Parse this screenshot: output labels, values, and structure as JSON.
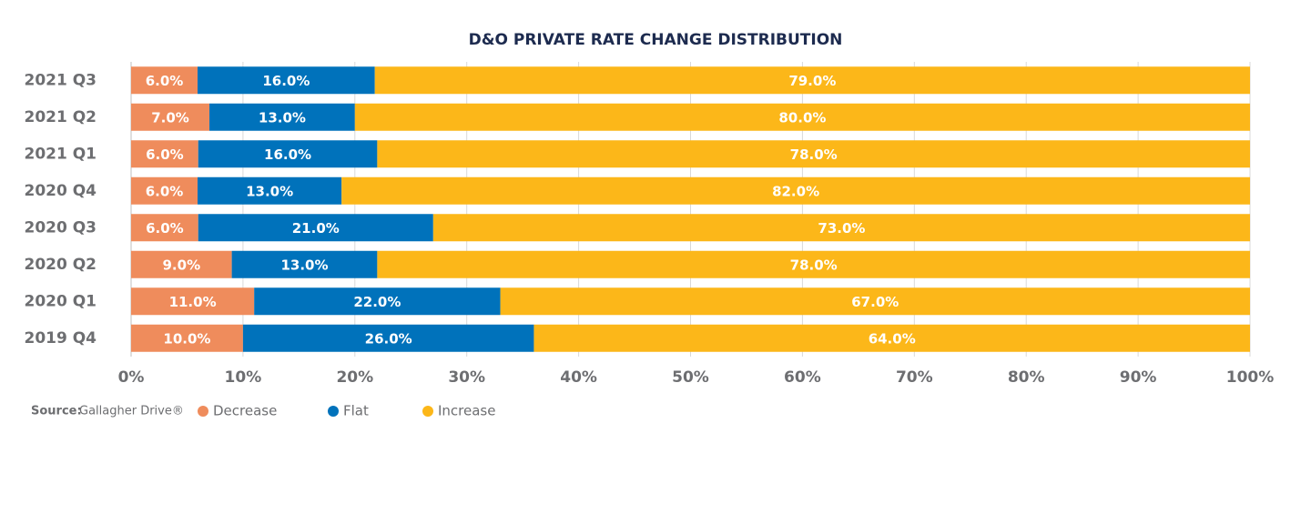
{
  "chart_data": {
    "type": "bar",
    "orientation": "horizontal",
    "stacked": "percent",
    "title": "D&O PRIVATE RATE CHANGE DISTRIBUTION",
    "categories": [
      "2021 Q3",
      "2021 Q2",
      "2021 Q1",
      "2020 Q4",
      "2020 Q3",
      "2020 Q2",
      "2020 Q1",
      "2019 Q4"
    ],
    "series": [
      {
        "name": "Decrease",
        "color": "#ef8c5c",
        "values": [
          6,
          7,
          6,
          6,
          6,
          9,
          11,
          10
        ],
        "value_labels": [
          "6.0%",
          "7.0%",
          "6.0%",
          "6.0%",
          "6.0%",
          "9.0%",
          "11.0%",
          "10.0%"
        ]
      },
      {
        "name": "Flat",
        "color": "#0072bb",
        "values": [
          16,
          13,
          16,
          13,
          21,
          13,
          22,
          26
        ],
        "value_labels": [
          "16.0%",
          "13.0%",
          "16.0%",
          "13.0%",
          "21.0%",
          "13.0%",
          "22.0%",
          "26.0%"
        ]
      },
      {
        "name": "Increase",
        "color": "#fcb719",
        "values": [
          79,
          80,
          78,
          82,
          73,
          78,
          67,
          64
        ],
        "value_labels": [
          "79.0%",
          "80.0%",
          "78.0%",
          "82.0%",
          "73.0%",
          "78.0%",
          "67.0%",
          "64.0%"
        ]
      }
    ],
    "xlim": [
      0,
      100
    ],
    "xticks": [
      {
        "value": 0,
        "label": "0%"
      },
      {
        "value": 10,
        "label": "10%"
      },
      {
        "value": 20,
        "label": "20%"
      },
      {
        "value": 30,
        "label": "30%"
      },
      {
        "value": 40,
        "label": "40%"
      },
      {
        "value": 50,
        "label": "50%"
      },
      {
        "value": 60,
        "label": "60%"
      },
      {
        "value": 70,
        "label": "70%"
      },
      {
        "value": 80,
        "label": "80%"
      },
      {
        "value": 90,
        "label": "90%"
      },
      {
        "value": 100,
        "label": "100%"
      }
    ],
    "grid": true,
    "source_label": "Source:",
    "source": "Gallagher Drive®"
  }
}
